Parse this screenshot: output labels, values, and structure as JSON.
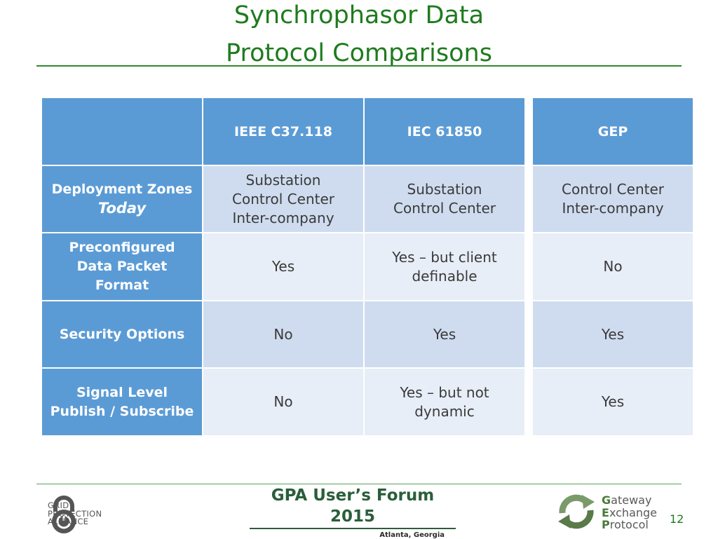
{
  "slide": {
    "title_line1": "Synchrophasor Data",
    "title_line2": "Protocol Comparisons",
    "page_number": "12"
  },
  "table": {
    "columns": [
      "",
      "IEEE C37.118",
      "IEC 61850",
      "GEP"
    ],
    "rows": [
      {
        "label_lines": [
          "Deployment Zones"
        ],
        "label_emphasis": "Today",
        "cells": [
          [
            "Substation",
            "Control Center",
            "Inter-company"
          ],
          [
            "Substation",
            "Control Center"
          ],
          [
            "Control Center",
            "Inter-company"
          ]
        ]
      },
      {
        "label_lines": [
          "Preconfigured",
          "Data Packet",
          "Format"
        ],
        "cells": [
          [
            "Yes"
          ],
          [
            "Yes – but client",
            "definable"
          ],
          [
            "No"
          ]
        ]
      },
      {
        "label_lines": [
          "Security Options"
        ],
        "cells": [
          [
            "No"
          ],
          [
            "Yes"
          ],
          [
            "Yes"
          ]
        ]
      },
      {
        "label_lines": [
          "Signal  Level",
          "Publish / Subscribe"
        ],
        "cells": [
          [
            "No"
          ],
          [
            "Yes – but not",
            "dynamic"
          ],
          [
            "Yes"
          ]
        ]
      }
    ]
  },
  "footer": {
    "gpa_logo_lines": [
      "GRID",
      "PROTECTION",
      "ALLIANCE"
    ],
    "forum_title": "GPA User’s Forum 2015",
    "forum_location": "Atlanta, Georgia",
    "gep_logo": {
      "line1_initial": "G",
      "line1_rest": "ateway",
      "line2_initial": "E",
      "line2_rest": "xchange",
      "line3_initial": "P",
      "line3_rest": "rotocol"
    }
  },
  "colors": {
    "title": "#1e7b1e",
    "header_blue": "#5b9bd5",
    "cell_dark": "#cfdcef",
    "cell_light": "#e8eef7"
  },
  "icons": [
    "padlock-power-icon",
    "recycle-arrows-icon"
  ]
}
